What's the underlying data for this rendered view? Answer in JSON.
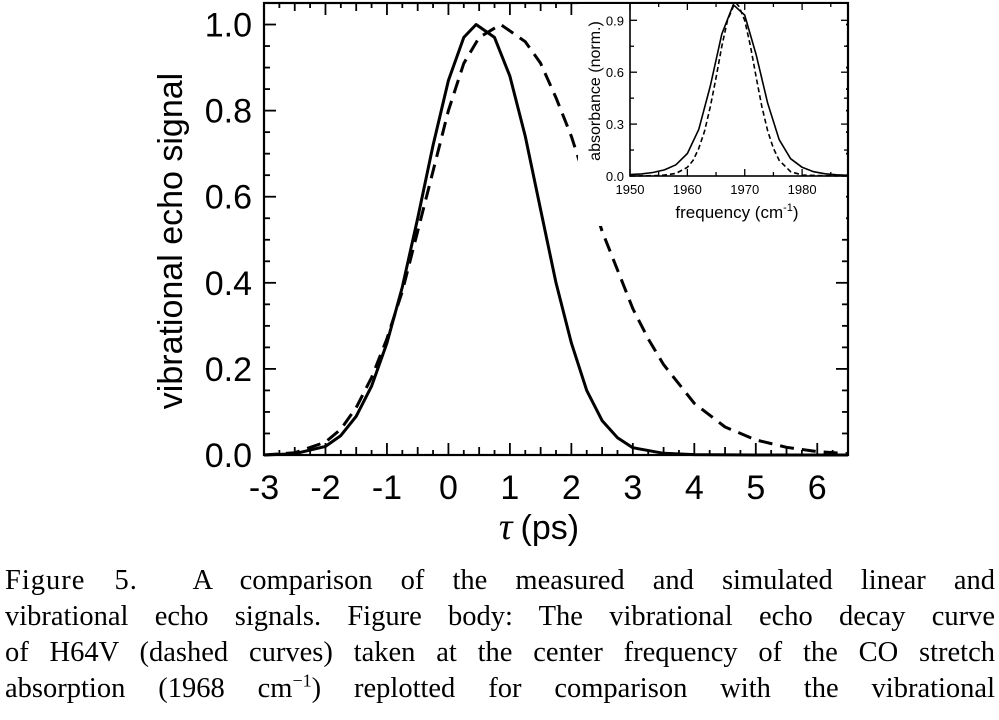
{
  "chart_data": [
    {
      "type": "line",
      "xlabel_symbol": "τ",
      "xlabel_unit": "(ps)",
      "ylabel": "vibrational echo signal",
      "xlim": [
        -3,
        6.5
      ],
      "ylim": [
        0,
        1.05
      ],
      "x_ticks": [
        "-3",
        "-2",
        "-1",
        "0",
        "1",
        "2",
        "3",
        "4",
        "5",
        "6"
      ],
      "y_ticks": [
        "0.0",
        "0.2",
        "0.4",
        "0.6",
        "0.8",
        "1.0"
      ],
      "grid": false,
      "series": [
        {
          "style": "solid",
          "x": [
            -3,
            -2.5,
            -2,
            -1.75,
            -1.5,
            -1.25,
            -1,
            -0.75,
            -0.5,
            -0.25,
            0,
            0.25,
            0.45,
            0.75,
            1,
            1.25,
            1.5,
            1.75,
            2,
            2.25,
            2.5,
            2.75,
            3,
            3.5,
            4,
            5,
            6.5
          ],
          "y": [
            0,
            0.003,
            0.02,
            0.045,
            0.09,
            0.16,
            0.26,
            0.39,
            0.55,
            0.72,
            0.87,
            0.97,
            1.0,
            0.97,
            0.88,
            0.74,
            0.57,
            0.4,
            0.26,
            0.15,
            0.08,
            0.04,
            0.017,
            0.004,
            0.001,
            0,
            0
          ]
        },
        {
          "style": "dashed",
          "x": [
            -3,
            -2.5,
            -2,
            -1.75,
            -1.5,
            -1.25,
            -1,
            -0.75,
            -0.5,
            -0.25,
            0,
            0.25,
            0.5,
            0.85,
            1.25,
            1.5,
            1.75,
            2,
            2.25,
            2.5,
            2.75,
            3,
            3.25,
            3.5,
            4,
            4.5,
            5,
            5.5,
            6,
            6.5
          ],
          "y": [
            0,
            0.005,
            0.03,
            0.06,
            0.11,
            0.18,
            0.27,
            0.38,
            0.52,
            0.66,
            0.8,
            0.91,
            0.97,
            1.0,
            0.96,
            0.91,
            0.83,
            0.74,
            0.63,
            0.52,
            0.43,
            0.34,
            0.27,
            0.21,
            0.12,
            0.065,
            0.035,
            0.018,
            0.008,
            0.003
          ]
        }
      ]
    },
    {
      "type": "line",
      "ylabel": "absorbance (norm.)",
      "xlabel_main": "frequency (cm",
      "xlabel_sup": "-1",
      "xlabel_close": ")",
      "xlim": [
        1950,
        1988
      ],
      "ylim": [
        0,
        1.0
      ],
      "x_ticks": [
        "1950",
        "1960",
        "1970",
        "1980"
      ],
      "y_ticks": [
        "0.0",
        "0.3",
        "0.6",
        "0.9"
      ],
      "series": [
        {
          "style": "solid",
          "x": [
            1950,
            1952,
            1954,
            1956,
            1958,
            1960,
            1962,
            1964,
            1966,
            1968,
            1970,
            1972,
            1974,
            1976,
            1978,
            1980,
            1982,
            1984,
            1986,
            1988
          ],
          "y": [
            0.008,
            0.012,
            0.02,
            0.035,
            0.065,
            0.13,
            0.27,
            0.52,
            0.82,
            0.99,
            0.93,
            0.7,
            0.42,
            0.21,
            0.1,
            0.05,
            0.025,
            0.013,
            0.007,
            0.004
          ]
        },
        {
          "style": "dashed",
          "x": [
            1950,
            1954,
            1956,
            1958,
            1960,
            1961,
            1962,
            1963,
            1964,
            1965,
            1966,
            1967,
            1968,
            1968.5,
            1969,
            1970,
            1971,
            1972,
            1973,
            1974,
            1975,
            1976,
            1978,
            1980,
            1984,
            1988
          ],
          "y": [
            0,
            0.002,
            0.005,
            0.015,
            0.05,
            0.09,
            0.16,
            0.26,
            0.4,
            0.57,
            0.75,
            0.9,
            0.98,
            1.0,
            0.98,
            0.9,
            0.75,
            0.57,
            0.4,
            0.26,
            0.16,
            0.09,
            0.025,
            0.006,
            0.001,
            0
          ]
        }
      ]
    }
  ],
  "caption": {
    "label": "Figure 5.",
    "line1_rest": "A comparison of the measured and simulated linear and",
    "line2": "vibrational echo signals. Figure body:  The vibrational echo decay curve",
    "line3": "of H64V (dashed curves) taken at the center frequency of the CO stretch",
    "line4_a": "absorption (1968 cm",
    "line4_sup": "−1",
    "line4_b": ") replotted for comparison with the vibrational"
  }
}
